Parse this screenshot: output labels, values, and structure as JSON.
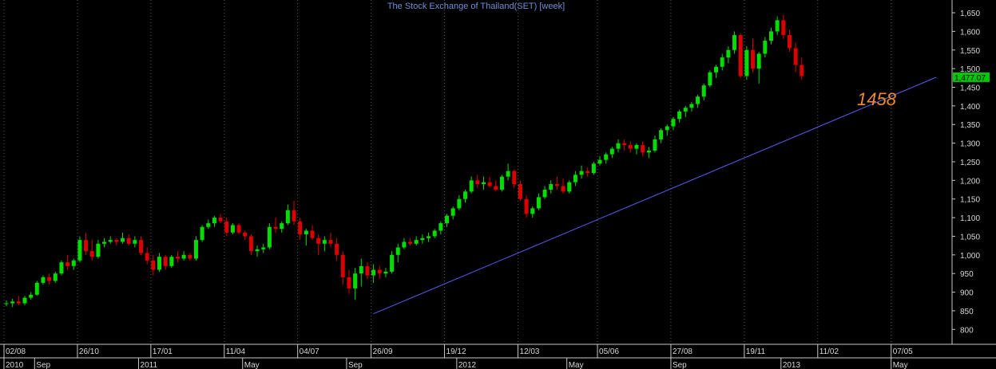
{
  "chart_data": {
    "type": "candlestick",
    "title": "The Stock Exchange of Thailand(SET) [week]",
    "ylim": [
      760,
      1680
    ],
    "yticks": [
      800,
      850,
      900,
      950,
      1000,
      1050,
      1100,
      1150,
      1200,
      1250,
      1300,
      1350,
      1400,
      1450,
      1500,
      1550,
      1600,
      1650
    ],
    "ytick_labels": [
      "800",
      "850",
      "900",
      "950",
      "1,000",
      "1,050",
      "1,100",
      "1,150",
      "1,200",
      "1,250",
      "1,300",
      "1,350",
      "1,400",
      "1,450",
      "1,500",
      "1,550",
      "1,600",
      "1,650"
    ],
    "date_labels": [
      {
        "label": "02/08",
        "index": 0
      },
      {
        "label": "26/10",
        "index": 12
      },
      {
        "label": "17/01",
        "index": 24
      },
      {
        "label": "11/04",
        "index": 36
      },
      {
        "label": "04/07",
        "index": 48
      },
      {
        "label": "26/09",
        "index": 60
      },
      {
        "label": "19/12",
        "index": 72
      },
      {
        "label": "12/03",
        "index": 84
      },
      {
        "label": "05/06",
        "index": 97
      },
      {
        "label": "27/08",
        "index": 109
      },
      {
        "label": "19/11",
        "index": 121
      },
      {
        "label": "11/02",
        "index": 133
      },
      {
        "label": "07/05",
        "index": 145
      }
    ],
    "period_labels": [
      {
        "label": "2010",
        "index": 0
      },
      {
        "label": "Sep",
        "index": 5
      },
      {
        "label": "2011",
        "index": 22
      },
      {
        "label": "May",
        "index": 39
      },
      {
        "label": "Sep",
        "index": 56
      },
      {
        "label": "2012",
        "index": 74
      },
      {
        "label": "May",
        "index": 92
      },
      {
        "label": "Sep",
        "index": 109
      },
      {
        "label": "2013",
        "index": 127
      },
      {
        "label": "May",
        "index": 145
      }
    ],
    "trendline": {
      "from_index": 60,
      "from_value": 842,
      "to_index": 152,
      "to_value": 1477
    },
    "last_value": "1,477.07",
    "annotation": "1458",
    "candles": [
      [
        868,
        878,
        862,
        870
      ],
      [
        870,
        882,
        860,
        875
      ],
      [
        875,
        890,
        865,
        870
      ],
      [
        870,
        890,
        865,
        885
      ],
      [
        885,
        900,
        880,
        893
      ],
      [
        893,
        930,
        890,
        925
      ],
      [
        925,
        945,
        920,
        940
      ],
      [
        940,
        950,
        920,
        930
      ],
      [
        930,
        955,
        925,
        950
      ],
      [
        950,
        985,
        945,
        980
      ],
      [
        980,
        1000,
        960,
        970
      ],
      [
        970,
        990,
        960,
        985
      ],
      [
        985,
        1050,
        980,
        1040
      ],
      [
        1040,
        1060,
        1000,
        1010
      ],
      [
        1010,
        1040,
        985,
        995
      ],
      [
        995,
        1040,
        990,
        1030
      ],
      [
        1030,
        1045,
        1020,
        1035
      ],
      [
        1035,
        1050,
        1030,
        1040
      ],
      [
        1040,
        1045,
        1025,
        1035
      ],
      [
        1035,
        1060,
        1030,
        1045
      ],
      [
        1045,
        1055,
        1025,
        1030
      ],
      [
        1030,
        1050,
        1020,
        1040
      ],
      [
        1040,
        1050,
        1000,
        1005
      ],
      [
        1005,
        1020,
        975,
        985
      ],
      [
        985,
        1000,
        945,
        960
      ],
      [
        960,
        1005,
        955,
        995
      ],
      [
        995,
        1000,
        960,
        970
      ],
      [
        970,
        1000,
        965,
        995
      ],
      [
        995,
        1010,
        980,
        990
      ],
      [
        990,
        1010,
        985,
        1000
      ],
      [
        1000,
        1005,
        985,
        990
      ],
      [
        990,
        1050,
        985,
        1040
      ],
      [
        1040,
        1080,
        1035,
        1075
      ],
      [
        1075,
        1095,
        1070,
        1085
      ],
      [
        1085,
        1105,
        1075,
        1100
      ],
      [
        1100,
        1110,
        1085,
        1090
      ],
      [
        1090,
        1100,
        1050,
        1060
      ],
      [
        1060,
        1085,
        1055,
        1080
      ],
      [
        1080,
        1085,
        1055,
        1060
      ],
      [
        1060,
        1065,
        1040,
        1050
      ],
      [
        1050,
        1055,
        1000,
        1010
      ],
      [
        1010,
        1025,
        995,
        1015
      ],
      [
        1015,
        1030,
        1005,
        1020
      ],
      [
        1020,
        1085,
        1015,
        1075
      ],
      [
        1075,
        1100,
        1060,
        1070
      ],
      [
        1070,
        1090,
        1060,
        1085
      ],
      [
        1085,
        1135,
        1080,
        1120
      ],
      [
        1120,
        1145,
        1080,
        1090
      ],
      [
        1090,
        1100,
        1040,
        1055
      ],
      [
        1055,
        1070,
        1025,
        1065
      ],
      [
        1065,
        1080,
        1040,
        1045
      ],
      [
        1045,
        1055,
        1000,
        1030
      ],
      [
        1030,
        1050,
        1010,
        1040
      ],
      [
        1040,
        1060,
        1020,
        1030
      ],
      [
        1030,
        1045,
        985,
        1000
      ],
      [
        1000,
        1010,
        920,
        940
      ],
      [
        940,
        960,
        895,
        910
      ],
      [
        910,
        965,
        880,
        950
      ],
      [
        950,
        990,
        915,
        970
      ],
      [
        970,
        980,
        935,
        945
      ],
      [
        945,
        975,
        925,
        960
      ],
      [
        960,
        970,
        935,
        950
      ],
      [
        950,
        965,
        940,
        955
      ],
      [
        955,
        1010,
        950,
        1000
      ],
      [
        1000,
        1030,
        980,
        1020
      ],
      [
        1020,
        1045,
        1015,
        1035
      ],
      [
        1035,
        1045,
        1025,
        1030
      ],
      [
        1030,
        1050,
        1025,
        1040
      ],
      [
        1040,
        1055,
        1030,
        1045
      ],
      [
        1045,
        1060,
        1035,
        1050
      ],
      [
        1050,
        1070,
        1045,
        1065
      ],
      [
        1065,
        1090,
        1055,
        1085
      ],
      [
        1085,
        1110,
        1075,
        1105
      ],
      [
        1105,
        1130,
        1095,
        1125
      ],
      [
        1125,
        1160,
        1120,
        1150
      ],
      [
        1150,
        1175,
        1140,
        1170
      ],
      [
        1170,
        1210,
        1165,
        1200
      ],
      [
        1200,
        1215,
        1180,
        1190
      ],
      [
        1190,
        1210,
        1175,
        1195
      ],
      [
        1195,
        1210,
        1180,
        1185
      ],
      [
        1185,
        1200,
        1170,
        1175
      ],
      [
        1175,
        1215,
        1170,
        1210
      ],
      [
        1210,
        1245,
        1200,
        1225
      ],
      [
        1225,
        1230,
        1180,
        1190
      ],
      [
        1190,
        1200,
        1145,
        1150
      ],
      [
        1150,
        1160,
        1100,
        1110
      ],
      [
        1110,
        1130,
        1100,
        1125
      ],
      [
        1125,
        1165,
        1120,
        1155
      ],
      [
        1155,
        1185,
        1150,
        1175
      ],
      [
        1175,
        1200,
        1165,
        1190
      ],
      [
        1190,
        1210,
        1175,
        1185
      ],
      [
        1185,
        1205,
        1165,
        1170
      ],
      [
        1170,
        1200,
        1165,
        1195
      ],
      [
        1195,
        1225,
        1185,
        1215
      ],
      [
        1215,
        1240,
        1205,
        1225
      ],
      [
        1225,
        1235,
        1210,
        1220
      ],
      [
        1220,
        1250,
        1215,
        1245
      ],
      [
        1245,
        1265,
        1240,
        1255
      ],
      [
        1255,
        1275,
        1245,
        1270
      ],
      [
        1270,
        1290,
        1260,
        1285
      ],
      [
        1285,
        1310,
        1275,
        1300
      ],
      [
        1300,
        1310,
        1280,
        1295
      ],
      [
        1295,
        1305,
        1275,
        1285
      ],
      [
        1285,
        1300,
        1270,
        1295
      ],
      [
        1295,
        1305,
        1265,
        1275
      ],
      [
        1275,
        1290,
        1260,
        1280
      ],
      [
        1280,
        1320,
        1275,
        1310
      ],
      [
        1310,
        1340,
        1300,
        1335
      ],
      [
        1335,
        1350,
        1320,
        1345
      ],
      [
        1345,
        1370,
        1335,
        1365
      ],
      [
        1365,
        1390,
        1355,
        1385
      ],
      [
        1385,
        1400,
        1370,
        1395
      ],
      [
        1395,
        1410,
        1385,
        1405
      ],
      [
        1405,
        1430,
        1395,
        1425
      ],
      [
        1425,
        1460,
        1415,
        1455
      ],
      [
        1455,
        1495,
        1450,
        1490
      ],
      [
        1490,
        1510,
        1475,
        1505
      ],
      [
        1505,
        1540,
        1495,
        1530
      ],
      [
        1530,
        1560,
        1515,
        1550
      ],
      [
        1550,
        1600,
        1540,
        1590
      ],
      [
        1590,
        1595,
        1475,
        1480
      ],
      [
        1480,
        1560,
        1470,
        1550
      ],
      [
        1550,
        1580,
        1490,
        1500
      ],
      [
        1500,
        1545,
        1460,
        1540
      ],
      [
        1540,
        1585,
        1530,
        1575
      ],
      [
        1575,
        1610,
        1565,
        1600
      ],
      [
        1600,
        1640,
        1590,
        1630
      ],
      [
        1630,
        1645,
        1580,
        1590
      ],
      [
        1590,
        1605,
        1545,
        1555
      ],
      [
        1555,
        1570,
        1490,
        1510
      ],
      [
        1510,
        1530,
        1470,
        1480
      ]
    ]
  },
  "colors": {
    "up": "#00dd00",
    "down": "#dd0000",
    "grid": "#5a5a5a",
    "axis": "#c8c8c8",
    "trend": "#5a5af0",
    "last_bg": "#00c800"
  }
}
